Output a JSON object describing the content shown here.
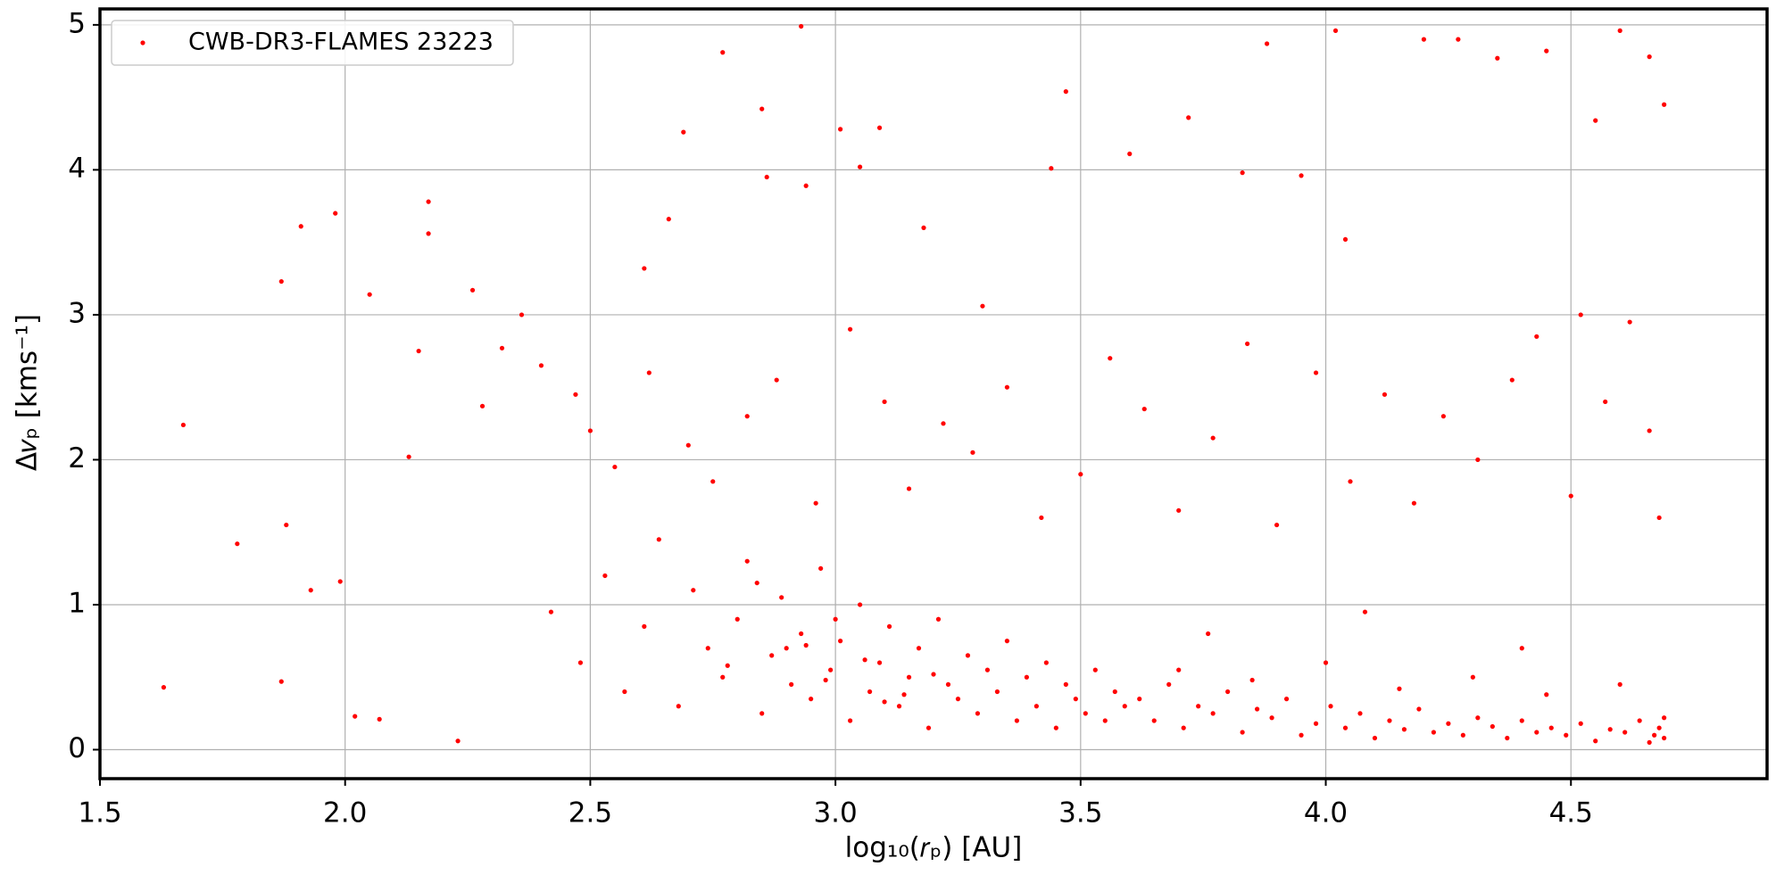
{
  "chart_data": {
    "type": "scatter",
    "x_label": "log₁₀(𝑟ₚ) [AU]",
    "y_label": "Δ𝑣ₚ [kms⁻¹]",
    "xlim": [
      1.5,
      4.9
    ],
    "ylim": [
      -0.2,
      5.11
    ],
    "xticks": [
      {
        "value": 1.5,
        "label": "1.5"
      },
      {
        "value": 2,
        "label": "2.0"
      },
      {
        "value": 2.5,
        "label": "2.5"
      },
      {
        "value": 3,
        "label": "3.0"
      },
      {
        "value": 3.5,
        "label": "3.5"
      },
      {
        "value": 4,
        "label": "4.0"
      },
      {
        "value": 4.5,
        "label": "4.5"
      }
    ],
    "yticks": [
      0,
      1,
      2,
      3,
      4,
      5
    ],
    "grid": true,
    "legend": "upper left",
    "series": [
      {
        "name": "CWB-DR3-FLAMES 23223",
        "color": "#ff0000",
        "x": [
          1.63,
          1.67,
          1.78,
          1.87,
          1.87,
          1.88,
          1.91,
          1.93,
          1.98,
          1.99,
          2.02,
          2.05,
          2.07,
          2.13,
          2.17,
          2.17,
          2.26,
          2.36,
          2.23,
          2.28,
          2.61,
          2.66,
          2.69,
          2.77,
          2.85,
          2.86,
          2.93,
          2.94,
          3.01,
          3.05,
          3.09,
          3.18,
          3.3,
          3.44,
          3.47,
          3.6,
          3.72,
          3.83,
          3.88,
          3.95,
          4.02,
          4.04,
          4.2,
          4.27,
          4.35,
          4.45,
          4.55,
          4.6,
          4.66,
          4.69,
          2.15,
          2.32,
          2.4,
          2.47,
          2.5,
          2.55,
          2.62,
          2.7,
          2.75,
          2.82,
          2.88,
          2.96,
          3.03,
          3.1,
          3.15,
          3.22,
          3.28,
          3.35,
          3.42,
          3.5,
          3.56,
          3.63,
          3.7,
          3.77,
          3.84,
          3.9,
          3.98,
          4.05,
          4.12,
          4.18,
          4.24,
          4.31,
          4.38,
          4.43,
          4.5,
          4.57,
          4.62,
          4.66,
          4.68,
          4.52,
          2.42,
          2.48,
          2.53,
          2.57,
          2.61,
          2.64,
          2.68,
          2.71,
          2.74,
          2.77,
          2.8,
          2.82,
          2.85,
          2.87,
          2.89,
          2.91,
          2.93,
          2.95,
          2.97,
          2.99,
          3.01,
          3.03,
          3.05,
          3.07,
          3.09,
          3.11,
          3.13,
          3.15,
          3.17,
          3.19,
          3.21,
          3.23,
          3.25,
          3.27,
          3.29,
          3.31,
          3.33,
          3.35,
          3.37,
          3.39,
          3.41,
          3.43,
          3.45,
          3.47,
          3.49,
          3.51,
          3.53,
          3.55,
          3.57,
          3.59,
          2.9,
          2.98,
          3.06,
          3.14,
          2.84,
          3.0,
          2.78,
          3.2,
          3.1,
          2.94,
          3.62,
          3.65,
          3.68,
          3.71,
          3.74,
          3.77,
          3.8,
          3.83,
          3.86,
          3.89,
          3.92,
          3.95,
          3.98,
          4.01,
          4.04,
          4.07,
          4.1,
          4.13,
          4.16,
          4.19,
          4.22,
          4.25,
          4.28,
          4.31,
          4.34,
          4.37,
          4.4,
          4.43,
          4.46,
          4.49,
          4.52,
          4.55,
          4.58,
          4.61,
          4.64,
          4.67,
          4.69,
          4.69,
          4.68,
          4.66,
          3.7,
          3.85,
          4.0,
          4.15,
          4.3,
          4.45,
          4.6,
          3.76,
          4.08,
          4.4
        ],
        "values": [
          0.43,
          2.24,
          1.42,
          0.47,
          3.23,
          1.55,
          3.61,
          1.1,
          3.7,
          1.16,
          0.23,
          3.14,
          0.21,
          2.02,
          3.78,
          3.56,
          3.17,
          3.0,
          0.06,
          2.37,
          3.32,
          3.66,
          4.26,
          4.81,
          4.42,
          3.95,
          4.99,
          3.89,
          4.28,
          4.02,
          4.29,
          3.6,
          3.06,
          4.01,
          4.54,
          4.11,
          4.36,
          3.98,
          4.87,
          3.96,
          4.96,
          3.52,
          4.9,
          4.9,
          4.77,
          4.82,
          4.34,
          4.96,
          4.78,
          4.45,
          2.75,
          2.77,
          2.65,
          2.45,
          2.2,
          1.95,
          2.6,
          2.1,
          1.85,
          2.3,
          2.55,
          1.7,
          2.9,
          2.4,
          1.8,
          2.25,
          2.05,
          2.5,
          1.6,
          1.9,
          2.7,
          2.35,
          1.65,
          2.15,
          2.8,
          1.55,
          2.6,
          1.85,
          2.45,
          1.7,
          2.3,
          2.0,
          2.55,
          2.85,
          1.75,
          2.4,
          2.95,
          2.2,
          1.6,
          3.0,
          0.95,
          0.6,
          1.2,
          0.4,
          0.85,
          1.45,
          0.3,
          1.1,
          0.7,
          0.5,
          0.9,
          1.3,
          0.25,
          0.65,
          1.05,
          0.45,
          0.8,
          0.35,
          1.25,
          0.55,
          0.75,
          0.2,
          1.0,
          0.4,
          0.6,
          0.85,
          0.3,
          0.5,
          0.7,
          0.15,
          0.9,
          0.45,
          0.35,
          0.65,
          0.25,
          0.55,
          0.4,
          0.75,
          0.2,
          0.5,
          0.3,
          0.6,
          0.15,
          0.45,
          0.35,
          0.25,
          0.55,
          0.2,
          0.4,
          0.3,
          0.7,
          0.48,
          0.62,
          0.38,
          1.15,
          0.9,
          0.58,
          0.52,
          0.33,
          0.72,
          0.35,
          0.2,
          0.45,
          0.15,
          0.3,
          0.25,
          0.4,
          0.12,
          0.28,
          0.22,
          0.35,
          0.1,
          0.18,
          0.3,
          0.15,
          0.25,
          0.08,
          0.2,
          0.14,
          0.28,
          0.12,
          0.18,
          0.1,
          0.22,
          0.16,
          0.08,
          0.2,
          0.12,
          0.15,
          0.1,
          0.18,
          0.06,
          0.14,
          0.12,
          0.2,
          0.1,
          0.08,
          0.22,
          0.15,
          0.05,
          0.55,
          0.48,
          0.6,
          0.42,
          0.5,
          0.38,
          0.45,
          0.8,
          0.95,
          0.7
        ]
      }
    ]
  }
}
